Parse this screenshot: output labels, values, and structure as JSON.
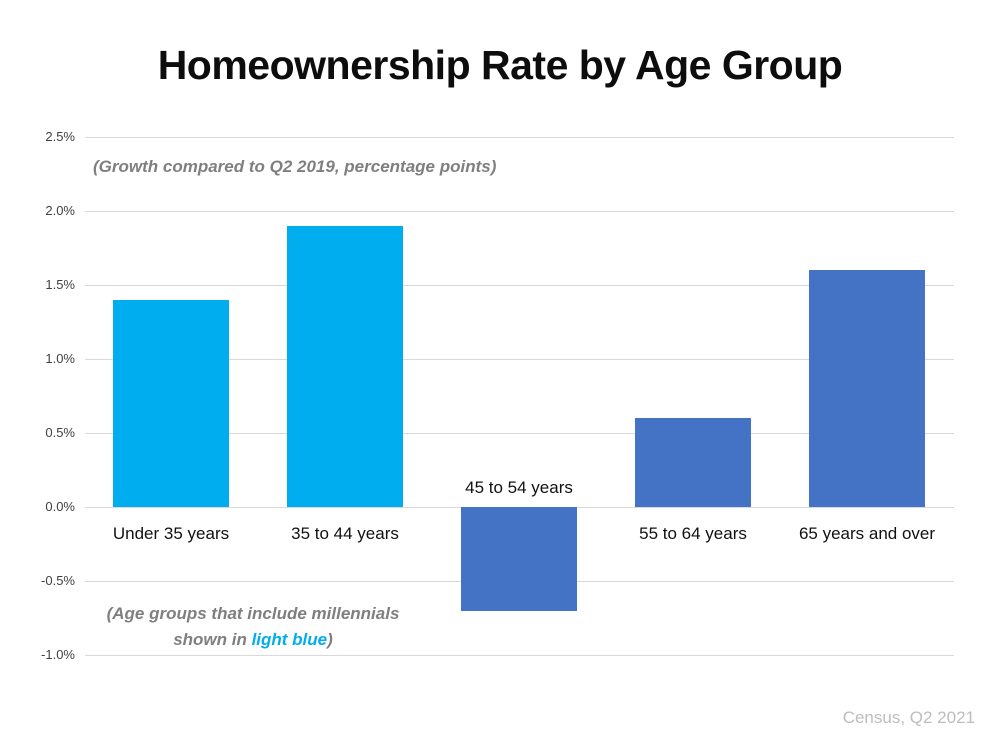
{
  "chart_data": {
    "type": "bar",
    "title": "Homeownership Rate by Age Group",
    "subtitle": "(Growth compared to Q2 2019, percentage points)",
    "categories": [
      "Under 35 years",
      "35 to 44 years",
      "45 to 54 years",
      "55 to 64 years",
      "65 years and over"
    ],
    "values": [
      1.4,
      1.9,
      -0.7,
      0.6,
      1.6
    ],
    "bar_colors": [
      "#00aeef",
      "#00aeef",
      "#4472c4",
      "#4472c4",
      "#4472c4"
    ],
    "unit": "percentage points vs Q2 2019",
    "ylim": [
      -1.0,
      2.5
    ],
    "yticks": [
      {
        "label": "2.5%",
        "value": 2.5
      },
      {
        "label": "2.0%",
        "value": 2.0
      },
      {
        "label": "1.5%",
        "value": 1.5
      },
      {
        "label": "1.0%",
        "value": 1.0
      },
      {
        "label": "0.5%",
        "value": 0.5
      },
      {
        "label": "0.0%",
        "value": 0.0
      },
      {
        "label": "-0.5%",
        "value": -0.5
      },
      {
        "label": "-1.0%",
        "value": -1.0
      }
    ],
    "grid": true,
    "legend": "none",
    "xlabel": "",
    "ylabel": ""
  },
  "annotation": {
    "line1": "(Age groups that include millennials",
    "line2_prefix": "shown in ",
    "line2_highlight": "light blue",
    "line2_suffix": ")"
  },
  "source": "Census, Q2 2021",
  "colors": {
    "background": "#ffffff",
    "gridline": "#d9d9d9",
    "axis_text": "#404040",
    "category_label_text": "#111111",
    "subtitle_text": "#7f7f7f",
    "source_text": "#bdbdbd",
    "millennial_bar": "#00aeef",
    "other_bar": "#4472c4",
    "highlight_text": "#00aeef"
  }
}
